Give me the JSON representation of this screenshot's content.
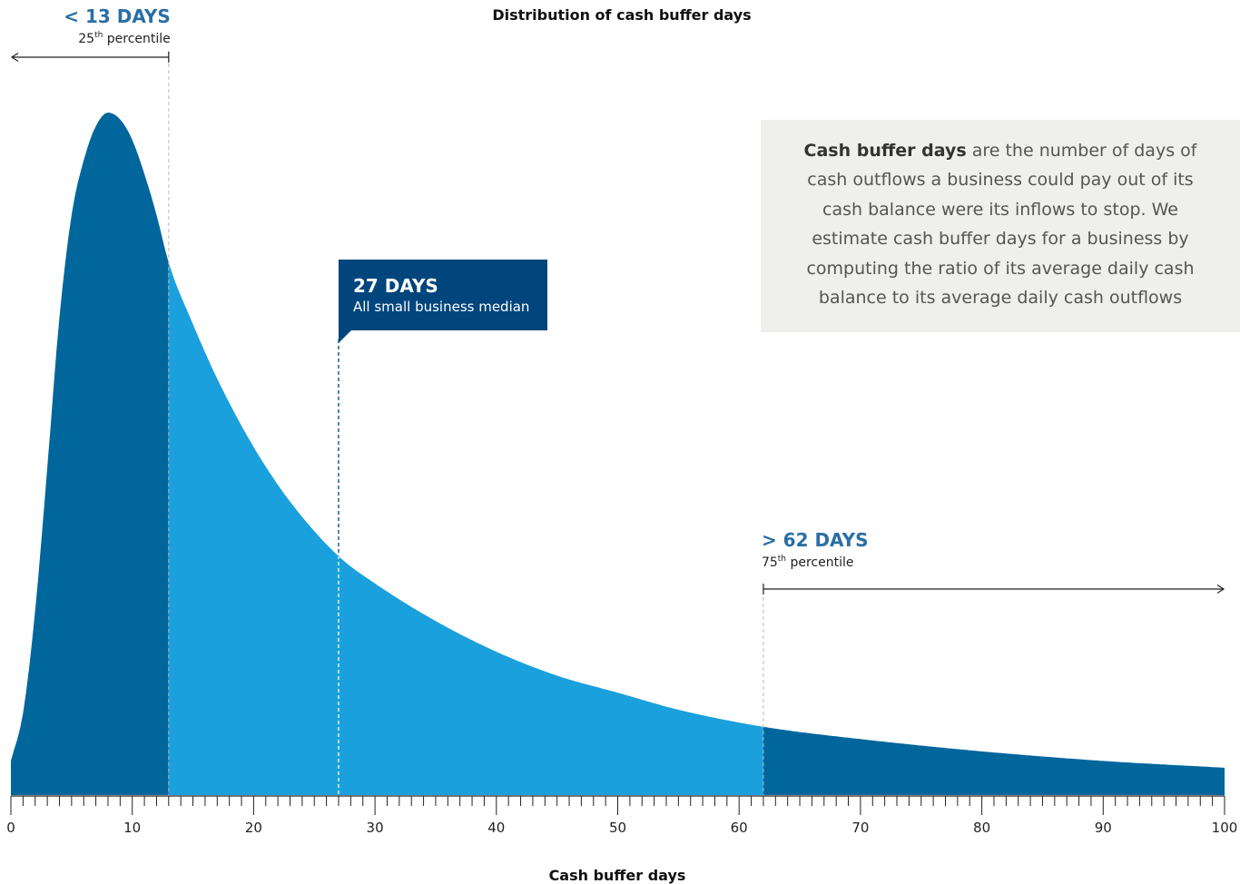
{
  "chart_data": {
    "type": "area",
    "title": "Distribution of cash buffer days",
    "xlabel": "Cash buffer days",
    "ylabel": "",
    "xlim": [
      0,
      100
    ],
    "x_ticks": [
      0,
      10,
      20,
      30,
      40,
      50,
      60,
      70,
      80,
      90,
      100
    ],
    "x_tick_labels": [
      "0",
      "10",
      "20",
      "30",
      "40",
      "50",
      "60",
      "70",
      "80",
      "90",
      "100"
    ],
    "curve": {
      "shape": "right-skewed distribution",
      "peak_x": 8,
      "x": [
        0,
        1,
        2,
        3,
        4,
        5,
        6,
        7,
        8,
        9,
        10,
        11,
        12,
        13,
        15,
        17,
        20,
        23,
        27,
        30,
        35,
        40,
        45,
        50,
        55,
        62,
        70,
        80,
        90,
        100
      ],
      "y": [
        0.05,
        0.12,
        0.27,
        0.48,
        0.7,
        0.85,
        0.93,
        0.98,
        1.0,
        0.99,
        0.96,
        0.91,
        0.85,
        0.78,
        0.69,
        0.61,
        0.51,
        0.43,
        0.35,
        0.31,
        0.255,
        0.21,
        0.175,
        0.15,
        0.125,
        0.1,
        0.082,
        0.064,
        0.05,
        0.04
      ]
    },
    "regions": [
      {
        "from": 0,
        "to": 13,
        "color": "#00669c"
      },
      {
        "from": 13,
        "to": 62,
        "color": "#1aa0dc"
      },
      {
        "from": 62,
        "to": 100,
        "color": "#00669c"
      }
    ],
    "markers": [
      {
        "x": 13,
        "label": "< 13 DAYS",
        "sub_main": "25",
        "sub_sup": "th",
        "sub_rest": " percentile",
        "arrow": "left"
      },
      {
        "x": 27,
        "label": "27 DAYS",
        "sub": "All small business median",
        "box_color": "#00457c"
      },
      {
        "x": 62,
        "label": "> 62 DAYS",
        "sub_main": "75",
        "sub_sup": "th",
        "sub_rest": " percentile",
        "arrow": "right"
      }
    ],
    "grid": false,
    "legend": "none"
  },
  "info_box": {
    "term": "Cash buffer days",
    "text": " are the number of days of cash outflows a business could pay out of its cash balance were its inflows to stop. We estimate cash buffer days for a business by computing the ratio of its average daily cash balance to its average daily cash outflows"
  },
  "colors": {
    "dark_blue": "#00669c",
    "light_blue": "#1aa0dc",
    "median_box": "#00457c",
    "label_blue": "#2a6fa5",
    "info_bg": "#efefed"
  }
}
